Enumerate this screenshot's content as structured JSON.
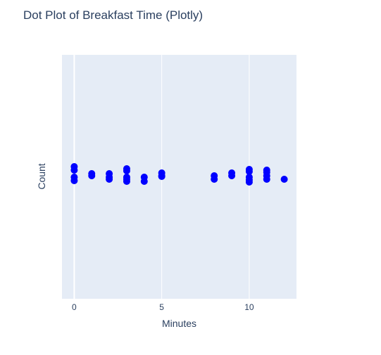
{
  "chart_data": {
    "type": "scatter",
    "title": "Dot Plot of Breakfast Time (Plotly)",
    "xlabel": "Minutes",
    "ylabel": "Count",
    "xlim": [
      -0.7,
      12.7
    ],
    "xticks": [
      0,
      5,
      10
    ],
    "grid": true,
    "background": "#e5ecf6",
    "marker_color": "#0000ff",
    "series": [
      {
        "points": [
          {
            "x": 0,
            "y": 0.7
          },
          {
            "x": 0,
            "y": 0.45
          },
          {
            "x": 0,
            "y": -0.05
          },
          {
            "x": 0,
            "y": -0.3
          },
          {
            "x": 1,
            "y": 0.2
          },
          {
            "x": 1,
            "y": 0.05
          },
          {
            "x": 2,
            "y": 0.2
          },
          {
            "x": 2,
            "y": -0.05
          },
          {
            "x": 2,
            "y": -0.2
          },
          {
            "x": 3,
            "y": 0.55
          },
          {
            "x": 3,
            "y": 0.4
          },
          {
            "x": 3,
            "y": -0.05
          },
          {
            "x": 3,
            "y": -0.2
          },
          {
            "x": 3,
            "y": -0.35
          },
          {
            "x": 4,
            "y": -0.05
          },
          {
            "x": 4,
            "y": -0.35
          },
          {
            "x": 5,
            "y": 0.25
          },
          {
            "x": 5,
            "y": 0.05
          },
          {
            "x": 5,
            "y": 0.0
          },
          {
            "x": 8,
            "y": 0.05
          },
          {
            "x": 8,
            "y": -0.2
          },
          {
            "x": 9,
            "y": 0.25
          },
          {
            "x": 9,
            "y": 0.05
          },
          {
            "x": 10,
            "y": 0.5
          },
          {
            "x": 10,
            "y": 0.35
          },
          {
            "x": 10,
            "y": -0.05
          },
          {
            "x": 10,
            "y": -0.25
          },
          {
            "x": 10,
            "y": -0.4
          },
          {
            "x": 11,
            "y": 0.45
          },
          {
            "x": 11,
            "y": 0.3
          },
          {
            "x": 11,
            "y": 0.05
          },
          {
            "x": 11,
            "y": -0.2
          },
          {
            "x": 12,
            "y": -0.2
          }
        ]
      }
    ]
  }
}
